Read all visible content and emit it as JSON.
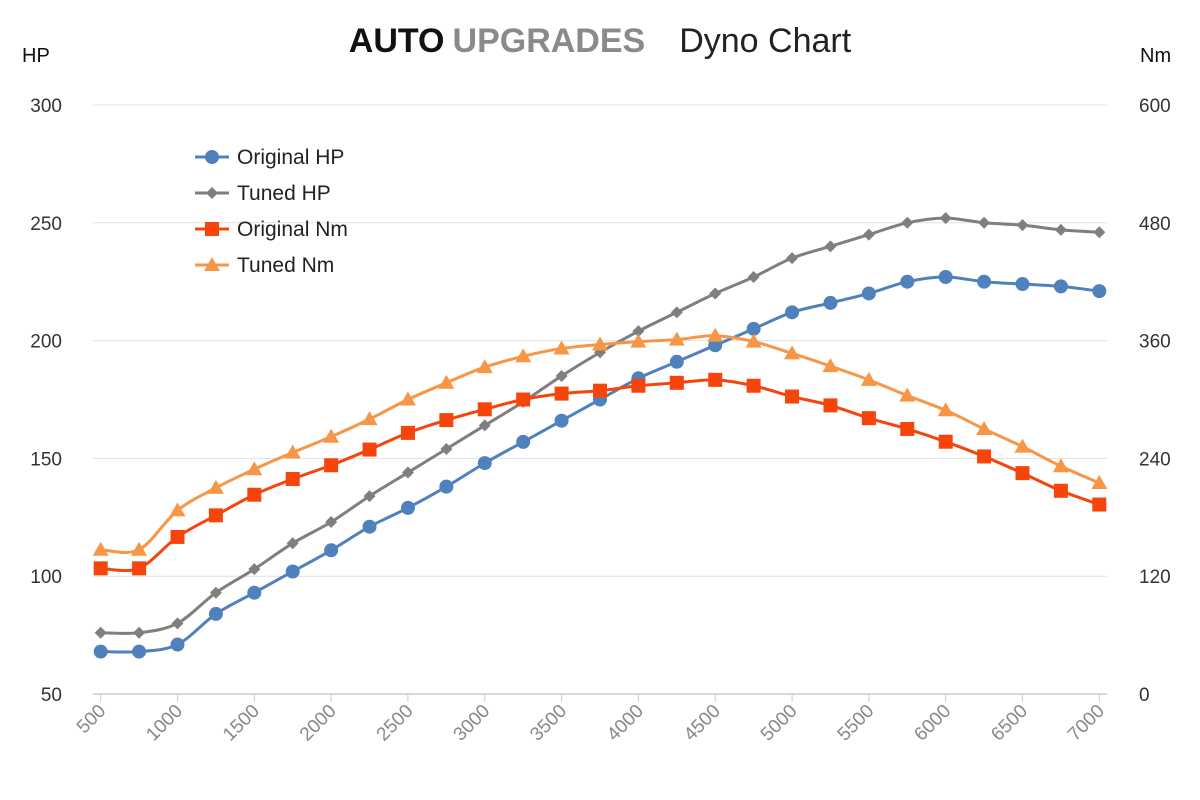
{
  "header": {
    "brand_part1": "AUTO",
    "brand_part2": "UPGRADES",
    "subtitle": "Dyno Chart"
  },
  "chart_data": {
    "type": "line",
    "title": "Dyno Chart",
    "x": [
      500,
      750,
      1000,
      1250,
      1500,
      1750,
      2000,
      2250,
      2500,
      2750,
      3000,
      3250,
      3500,
      3750,
      4000,
      4250,
      4500,
      4750,
      5000,
      5250,
      5500,
      5750,
      6000,
      6250,
      6500,
      6750,
      7000
    ],
    "x_tick_labels": [
      "500",
      "1000",
      "1500",
      "2000",
      "2500",
      "3000",
      "3500",
      "4000",
      "4500",
      "5000",
      "5500",
      "6000",
      "6500",
      "7000"
    ],
    "x_range": [
      450,
      7050
    ],
    "left_axis": {
      "label": "HP",
      "range": [
        50,
        300
      ],
      "ticks": [
        "50",
        "100",
        "150",
        "200",
        "250",
        "300"
      ]
    },
    "right_axis": {
      "label": "Nm",
      "range": [
        0,
        600
      ],
      "ticks": [
        "0",
        "120",
        "240",
        "360",
        "480",
        "600"
      ]
    },
    "grid": true,
    "legend_position": "top-left",
    "series": [
      {
        "name": "Original HP",
        "axis": "left",
        "color": "#4f81bd",
        "marker": "circle",
        "values": [
          68,
          68,
          71,
          84,
          93,
          102,
          111,
          121,
          129,
          138,
          148,
          157,
          166,
          175,
          184,
          191,
          198,
          205,
          212,
          216,
          220,
          225,
          227,
          225,
          224,
          223,
          221
        ]
      },
      {
        "name": "Tuned HP",
        "axis": "left",
        "color": "#7f7f7f",
        "marker": "diamond",
        "values": [
          76,
          76,
          80,
          93,
          103,
          114,
          123,
          134,
          144,
          154,
          164,
          174,
          185,
          195,
          204,
          212,
          220,
          227,
          235,
          240,
          245,
          250,
          252,
          250,
          249,
          247,
          246
        ]
      },
      {
        "name": "Original Nm",
        "axis": "right",
        "color": "#f5450c",
        "marker": "square",
        "values": [
          128,
          128,
          160,
          182,
          203,
          219,
          233,
          249,
          266,
          279,
          290,
          300,
          306,
          309,
          314,
          317,
          320,
          314,
          303,
          294,
          281,
          270,
          257,
          242,
          225,
          207,
          193
        ]
      },
      {
        "name": "Tuned Nm",
        "axis": "right",
        "color": "#f79646",
        "marker": "triangle",
        "values": [
          147,
          147,
          187,
          210,
          229,
          246,
          262,
          280,
          300,
          317,
          333,
          344,
          352,
          356,
          359,
          361,
          365,
          359,
          347,
          334,
          320,
          304,
          289,
          270,
          252,
          232,
          215
        ]
      }
    ]
  }
}
